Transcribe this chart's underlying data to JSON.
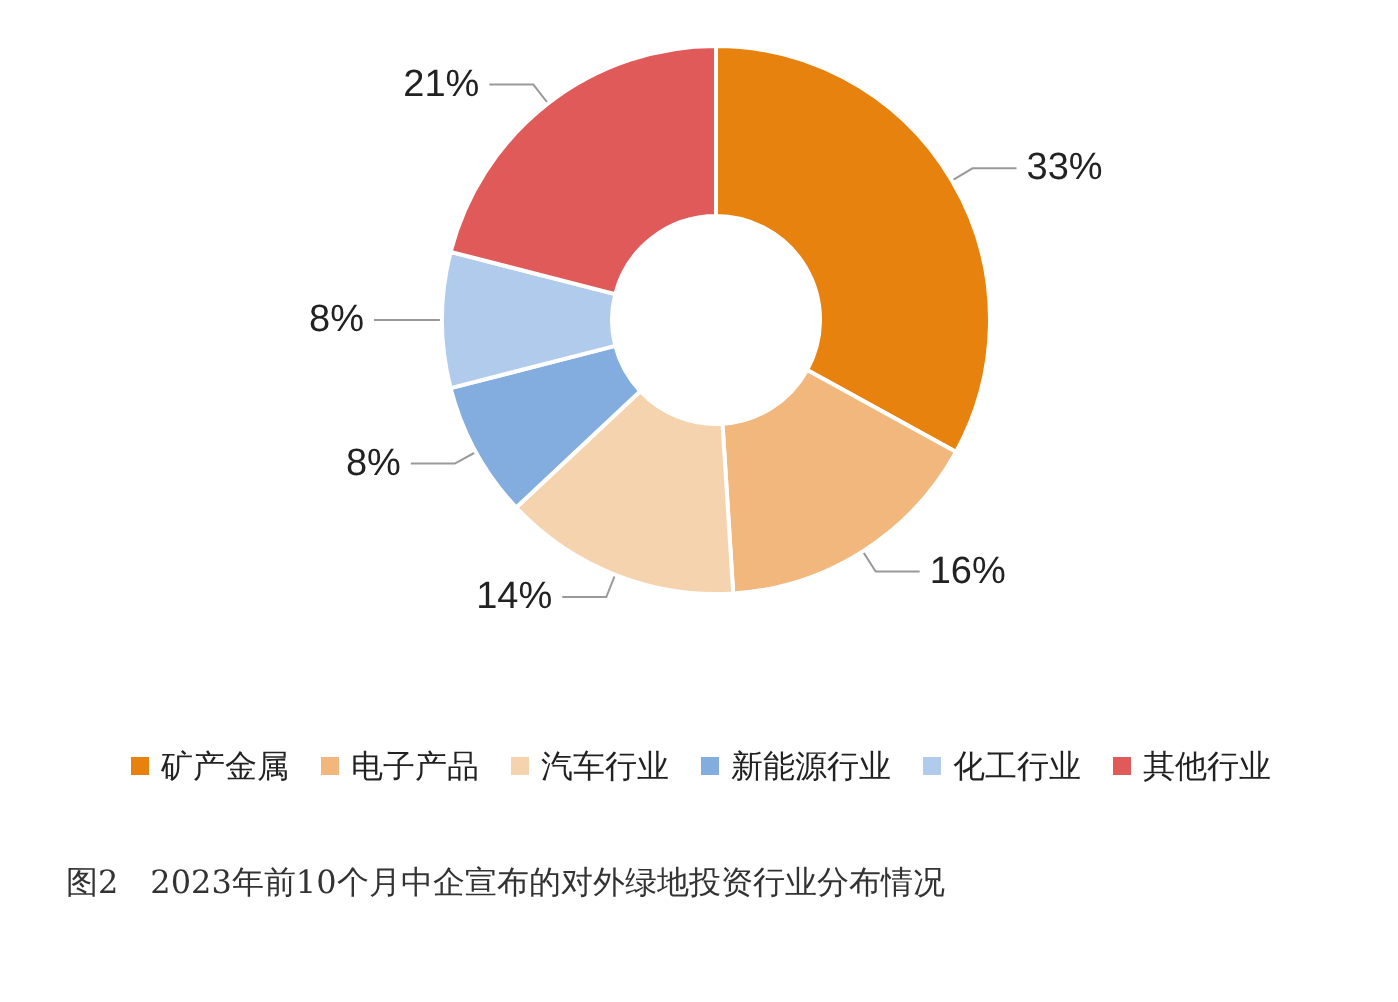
{
  "chart_data": {
    "type": "donut",
    "title": "图2　2023年前10个月中企宣布的对外绿地投资行业分布情况",
    "categories": [
      "矿产金属",
      "电子产品",
      "汽车行业",
      "新能源行业",
      "化工行业",
      "其他行业"
    ],
    "values": [
      33,
      16,
      14,
      8,
      8,
      21
    ],
    "value_labels": [
      "33%",
      "16%",
      "14%",
      "8%",
      "8%",
      "21%"
    ],
    "colors": [
      "#e8820e",
      "#f2b77d",
      "#f5d3ae",
      "#83acdf",
      "#b0cbeb",
      "#e05a5a"
    ],
    "legend": "bottom"
  }
}
